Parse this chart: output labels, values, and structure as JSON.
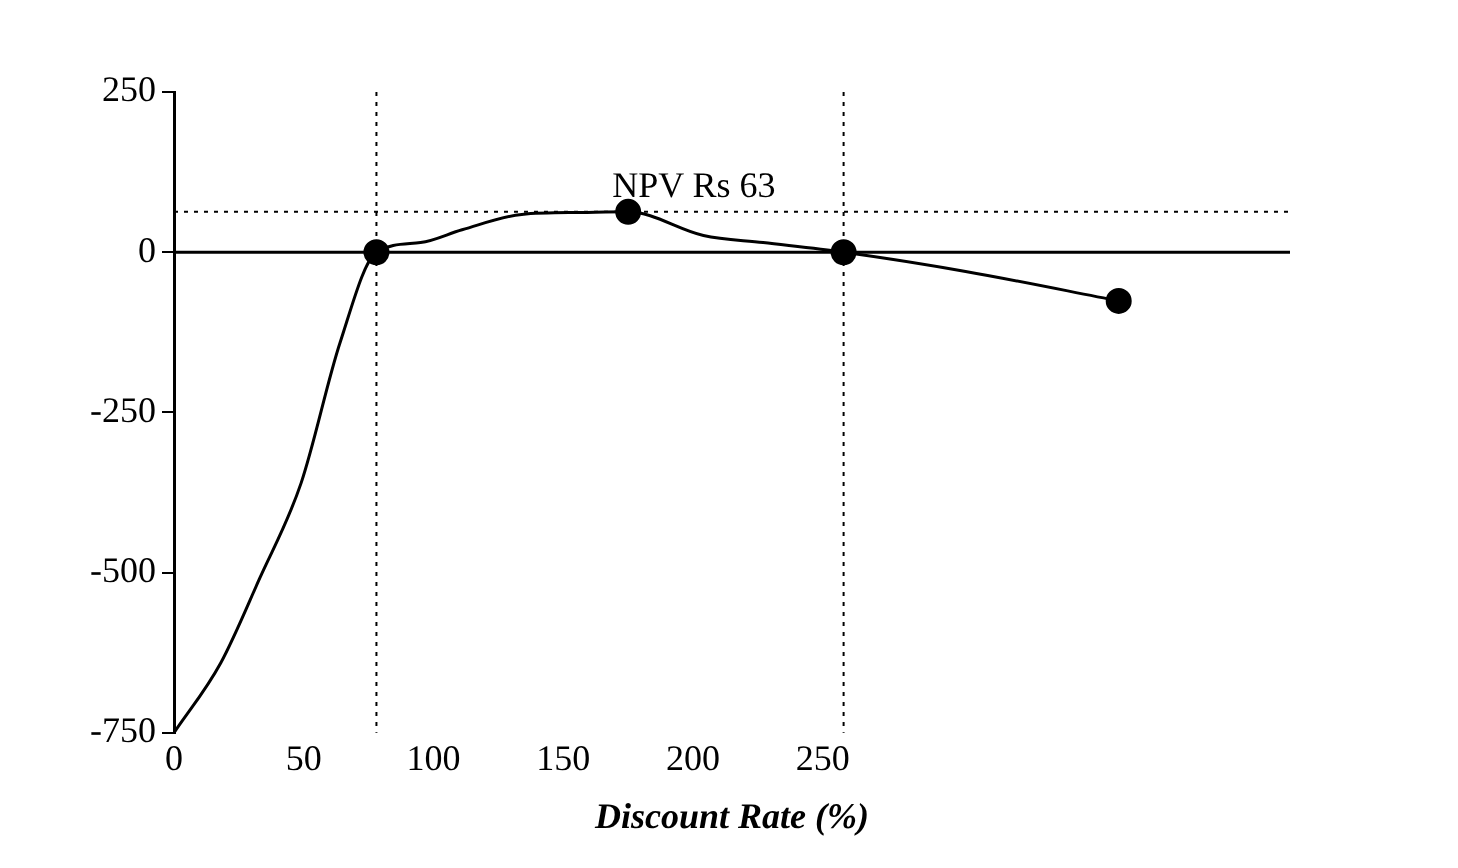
{
  "chart_data": {
    "type": "line",
    "xlabel": "Discount Rate (%)",
    "xlim": [
      0,
      430
    ],
    "xticks": [
      0,
      50,
      100,
      150,
      200,
      250
    ],
    "ylim": [
      -750,
      250
    ],
    "yticks": [
      250,
      0,
      -250,
      -500,
      -750
    ],
    "grid": false,
    "legend": false,
    "series": [
      {
        "type": "line",
        "color": "#000000",
        "marker": "none",
        "x": [
          0,
          18,
          33,
          49,
          64,
          78,
          95,
          111,
          134,
          157,
          175,
          204,
          227,
          258,
          305,
          364
        ],
        "values": [
          -750,
          -641,
          -509,
          -360,
          -141,
          0,
          15,
          35,
          59,
          62,
          63,
          26,
          15,
          0,
          -30,
          -76
        ]
      },
      {
        "type": "scatter",
        "color": "#000000",
        "marker": "circle",
        "x": [
          78,
          175,
          258,
          364
        ],
        "values": [
          0,
          63,
          0,
          -76
        ]
      }
    ],
    "ref_lines": [
      {
        "axis": "y",
        "value": 0,
        "line_style": "solid"
      },
      {
        "axis": "y",
        "value": 63,
        "line_style": "dotted"
      },
      {
        "axis": "x",
        "value": 78,
        "line_style": "dotted"
      },
      {
        "axis": "x",
        "value": 258,
        "line_style": "dotted"
      }
    ],
    "annotations": [
      {
        "text": "NPV Rs 63",
        "x": 175,
        "y": 63
      }
    ]
  }
}
